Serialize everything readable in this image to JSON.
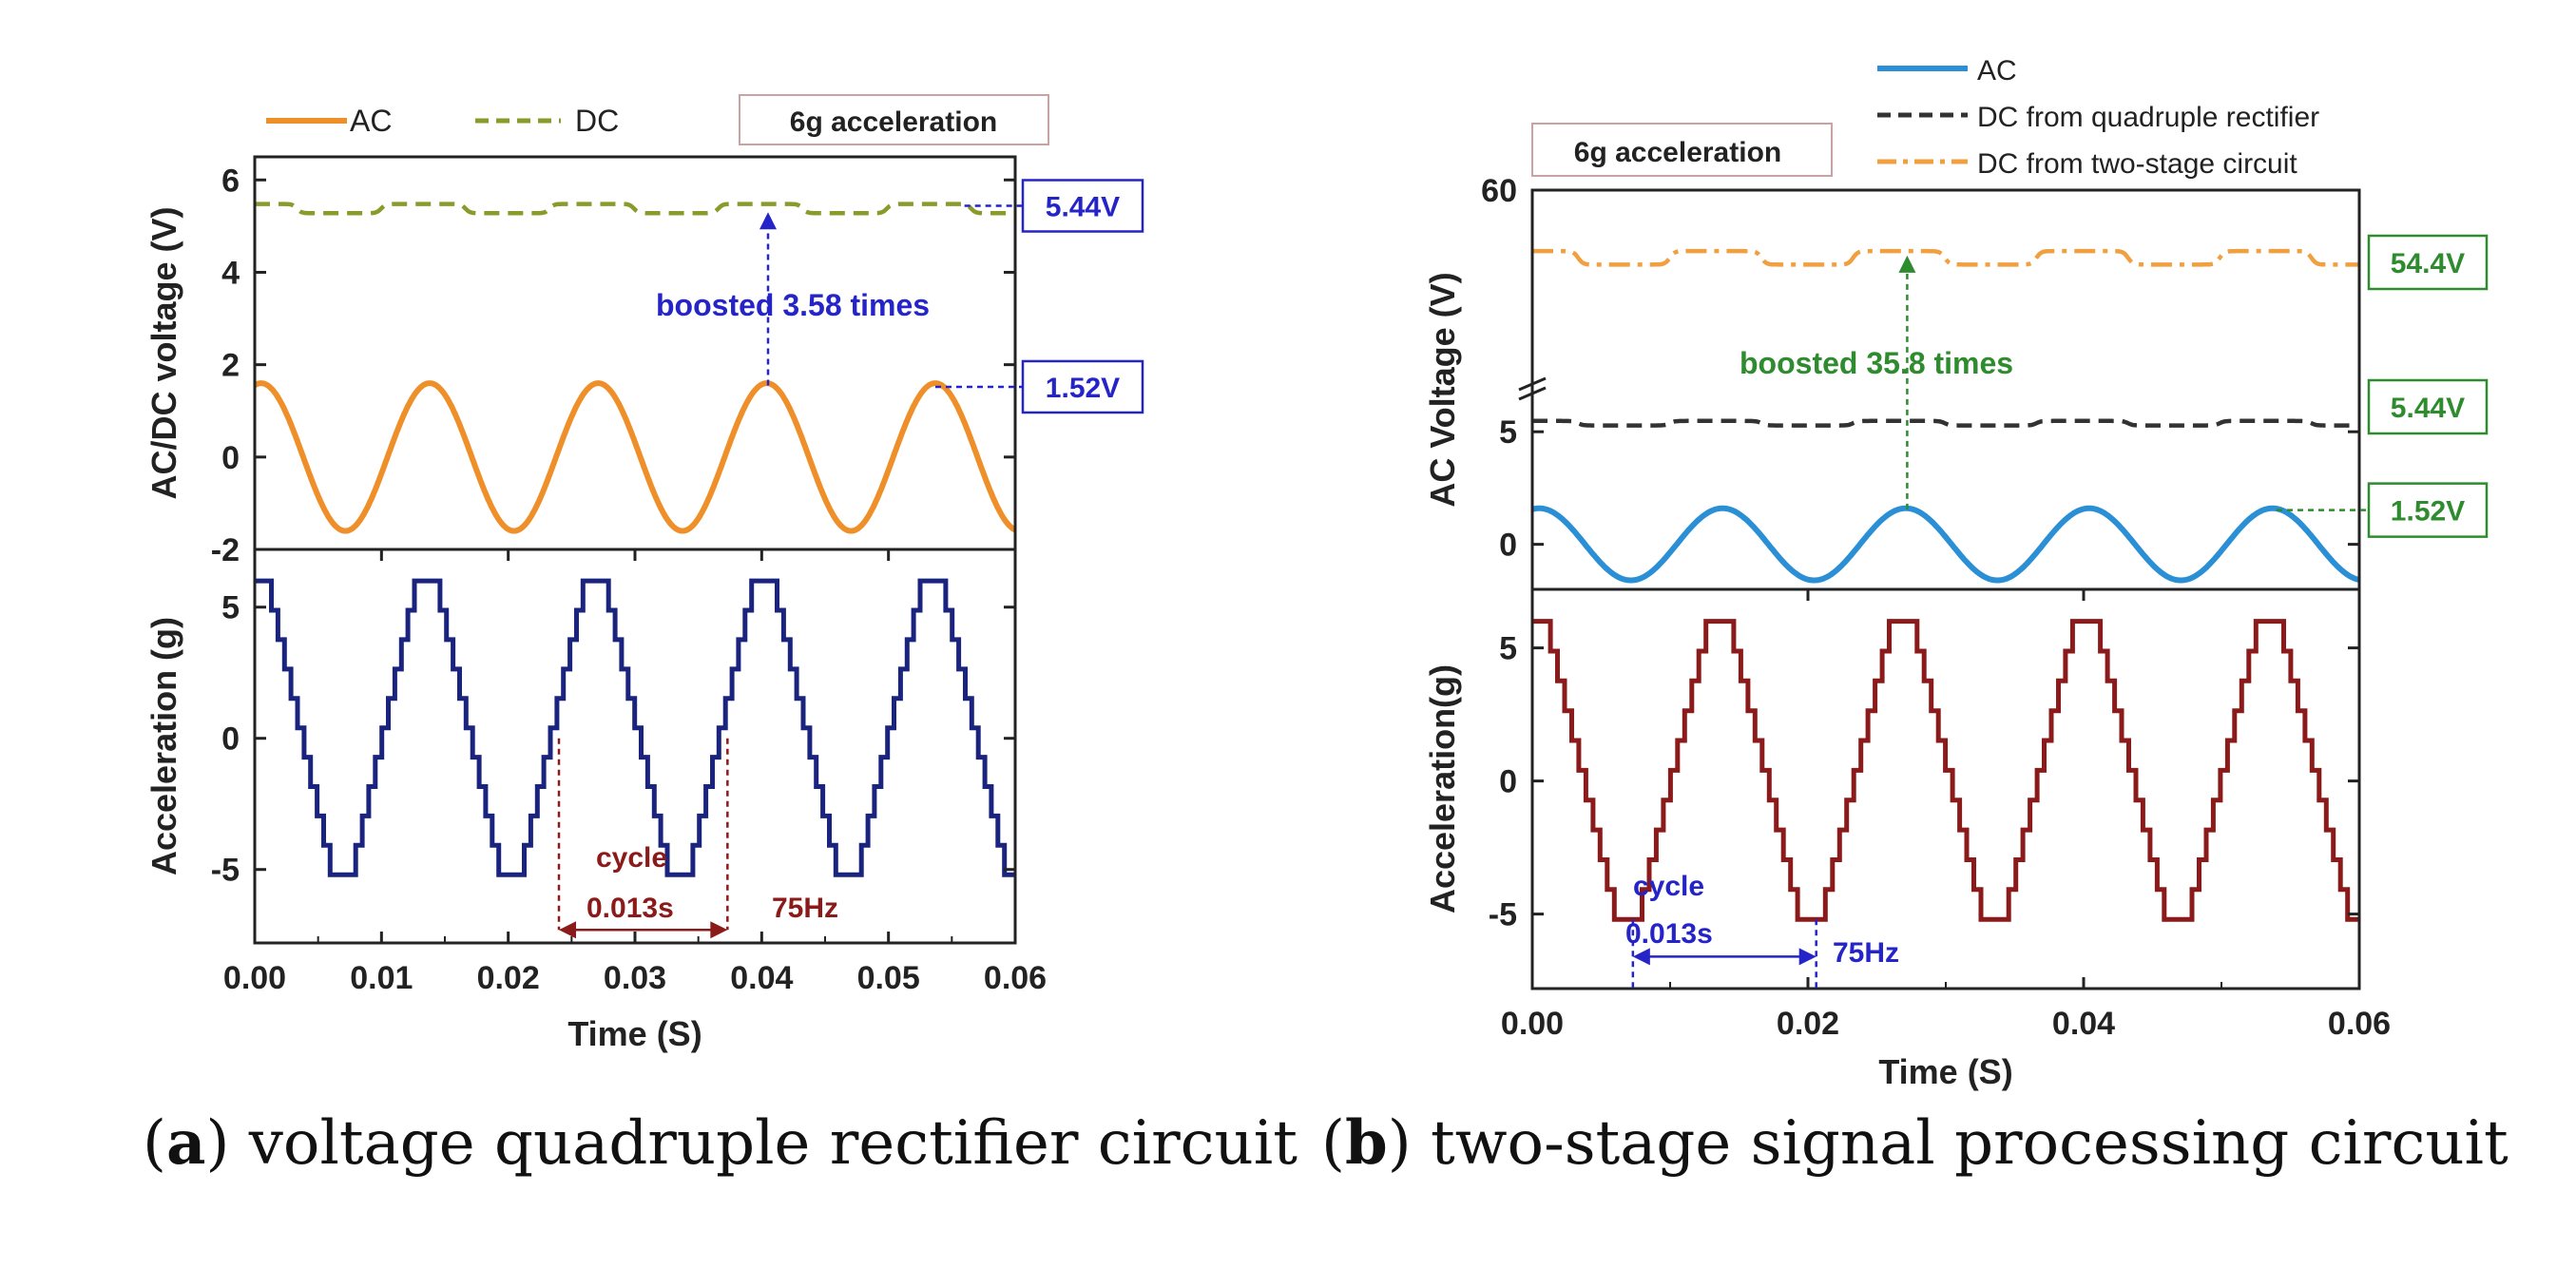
{
  "captions": {
    "a": {
      "letter": "a",
      "text": "voltage quadruple rectifier circuit"
    },
    "b": {
      "letter": "b",
      "text": "two-stage signal processing circuit"
    }
  },
  "chart_data": [
    {
      "id": "a-top",
      "type": "line",
      "ylabel": "AC/DC voltage (V)",
      "xlim": [
        0,
        0.06
      ],
      "ylim": [
        -2,
        6.5
      ],
      "yticks": [
        -2,
        0,
        2,
        4,
        6
      ],
      "legend": {
        "placement": "top",
        "entries": [
          {
            "label": "AC",
            "color": "#ef8f2a",
            "style": "solid"
          },
          {
            "label": "DC",
            "color": "#8a9a2b",
            "style": "dashed"
          }
        ]
      },
      "badge": "6g acceleration",
      "series": [
        {
          "name": "AC",
          "kind": "sine",
          "amplitude": 1.6,
          "offset": 0,
          "period": 0.0133,
          "phase_peak": 0.0005,
          "color": "#ef8f2a"
        },
        {
          "name": "DC",
          "kind": "ripple",
          "mean": 5.38,
          "ripple": 0.1,
          "period": 0.0133,
          "color": "#8a9a2b"
        }
      ],
      "annotations": [
        {
          "text": "5.44V",
          "color": "#2424c8",
          "x": 0.0405,
          "y": 5.44,
          "type": "box"
        },
        {
          "text": "1.52V",
          "color": "#2424c8",
          "x": 0.0536,
          "y": 1.52,
          "type": "box"
        },
        {
          "text": "boosted 3.58 times",
          "color": "#2424c8",
          "x_from": 0.0405,
          "y_from": 1.55,
          "y_to": 5.3,
          "type": "arrow"
        }
      ]
    },
    {
      "id": "a-bottom",
      "type": "line",
      "ylabel": "Acceleration (g)",
      "xlabel": "Time (S)",
      "xlim": [
        0,
        0.06
      ],
      "ylim": [
        -7.8,
        7.2
      ],
      "xticks": [
        0.0,
        0.01,
        0.02,
        0.03,
        0.04,
        0.05,
        0.06
      ],
      "xticklabels": [
        "0.00",
        "0.01",
        "0.02",
        "0.03",
        "0.04",
        "0.05",
        "0.06"
      ],
      "yticks": [
        -5,
        0,
        5
      ],
      "series": [
        {
          "name": "Acceleration",
          "kind": "trapezoid",
          "high": 6,
          "low": -5.2,
          "period": 0.0133,
          "first_top_end": 0.0008,
          "plateau": 0.0015,
          "steps": 10,
          "color": "#1a237e"
        }
      ],
      "annotations": [
        {
          "text": "cycle",
          "color": "#8b1a1a",
          "type": "label"
        },
        {
          "text": "0.013s",
          "color": "#8b1a1a",
          "x_from": 0.024,
          "x_to": 0.0373,
          "y": -7.3,
          "type": "span"
        },
        {
          "text": "75Hz",
          "color": "#8b1a1a",
          "type": "label"
        }
      ]
    },
    {
      "id": "b-top",
      "type": "line",
      "ylabel": "AC Voltage (V)",
      "xlim": [
        0,
        0.06
      ],
      "ytick_labels": [
        "0",
        "5",
        "60"
      ],
      "legend": {
        "placement": "top-right",
        "entries": [
          {
            "label": "AC",
            "color": "#2b8fd6",
            "style": "solid"
          },
          {
            "label": "DC from quadruple rectifier",
            "color": "#333333",
            "style": "dashed"
          },
          {
            "label": "DC from two-stage circuit",
            "color": "#f0a040",
            "style": "dashdot"
          }
        ]
      },
      "badge": "6g acceleration",
      "series": [
        {
          "name": "AC",
          "kind": "sine",
          "amplitude": 1.6,
          "offset": 0,
          "period": 0.0133,
          "phase_peak": 0.0005,
          "color": "#2b8fd6"
        },
        {
          "name": "DC from quadruple rectifier",
          "kind": "ripple",
          "mean": 5.38,
          "ripple": 0.1,
          "period": 0.0133,
          "color": "#333333"
        },
        {
          "name": "DC from two-stage circuit",
          "kind": "ripple",
          "mean": 54.0,
          "ripple": 0.6,
          "period": 0.0133,
          "color": "#f0a040"
        }
      ],
      "annotations": [
        {
          "text": "54.4V",
          "color": "#2e8b2e",
          "type": "box"
        },
        {
          "text": "5.44V",
          "color": "#2e8b2e",
          "type": "box"
        },
        {
          "text": "1.52V",
          "color": "#2e8b2e",
          "type": "box"
        },
        {
          "text": "boosted 35.8 times",
          "color": "#2e8b2e",
          "type": "arrow"
        }
      ]
    },
    {
      "id": "b-bottom",
      "type": "line",
      "ylabel": "Acceleration(g)",
      "xlabel": "Time (S)",
      "xlim": [
        0,
        0.06
      ],
      "ylim": [
        -7.8,
        7.2
      ],
      "xticks": [
        0.0,
        0.02,
        0.04,
        0.06
      ],
      "xticklabels": [
        "0.00",
        "0.02",
        "0.04",
        "0.06"
      ],
      "yticks": [
        -5,
        0,
        5
      ],
      "series": [
        {
          "name": "Acceleration",
          "kind": "trapezoid",
          "high": 6,
          "low": -5.2,
          "period": 0.0133,
          "first_top_end": 0.0008,
          "plateau": 0.0015,
          "steps": 10,
          "color": "#8b1a1a"
        }
      ],
      "annotations": [
        {
          "text": "cycle",
          "color": "#2424c8",
          "type": "label"
        },
        {
          "text": "0.013s",
          "color": "#2424c8",
          "x_from": 0.0073,
          "x_to": 0.0206,
          "y": -6.6,
          "type": "span"
        },
        {
          "text": "75Hz",
          "color": "#2424c8",
          "type": "label"
        }
      ]
    }
  ]
}
